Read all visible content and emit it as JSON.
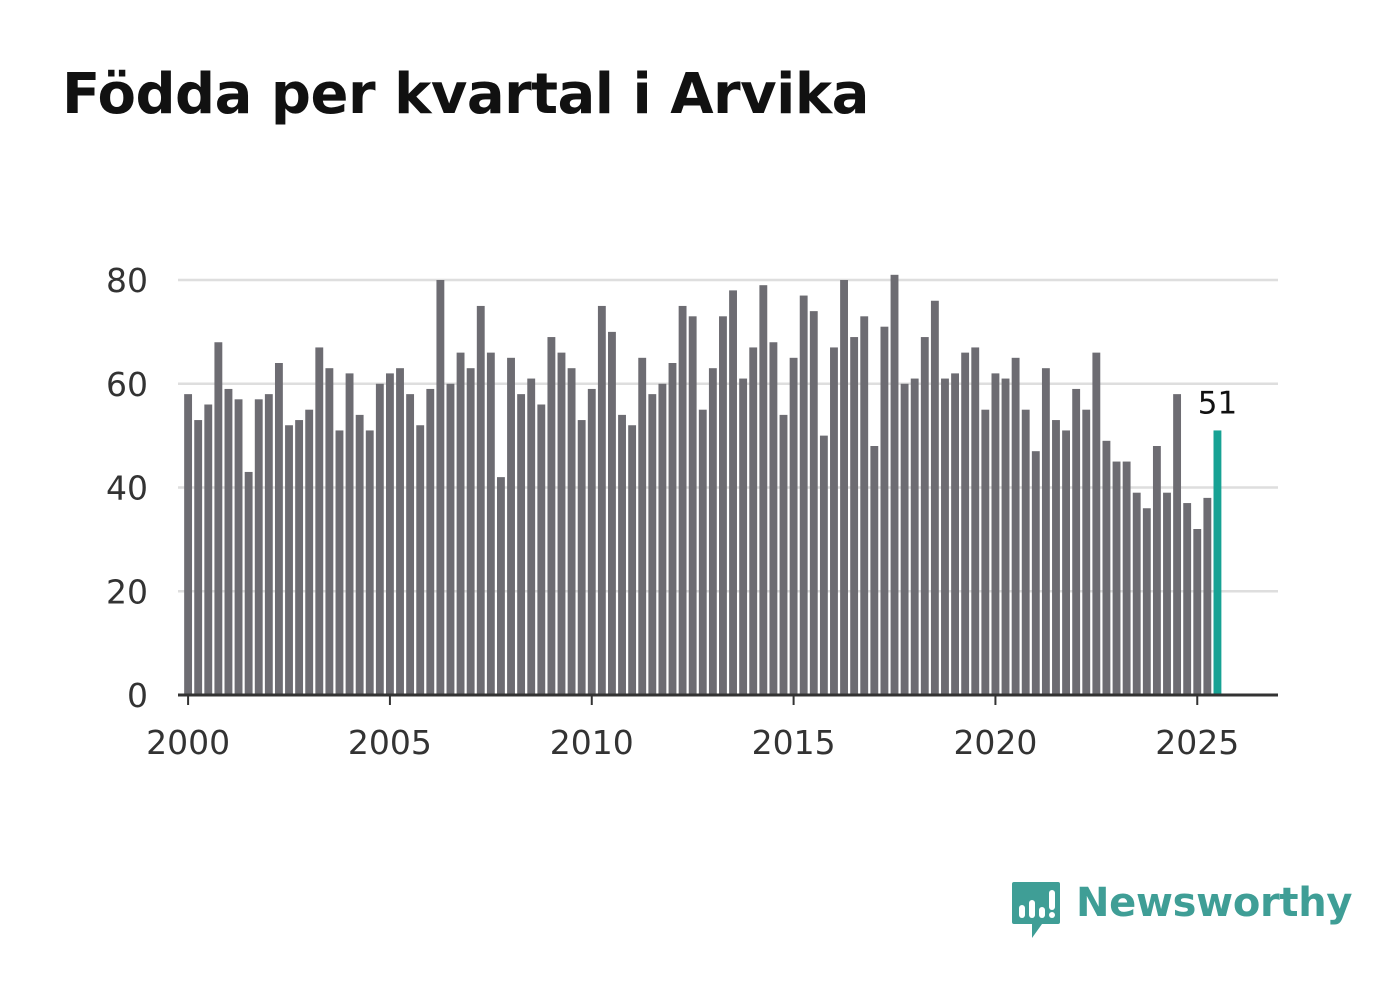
{
  "header": {
    "title": "Födda per kvartal i Arvika"
  },
  "brand": {
    "name": "Newsworthy",
    "color": "#3f9e96"
  },
  "colors": {
    "bar": "#6d6c72",
    "highlight": "#17a294",
    "grid": "#dedede",
    "axis": "#333333",
    "tick_text": "#333333"
  },
  "chart_data": {
    "type": "bar",
    "title": "Födda per kvartal i Arvika",
    "xlabel": "",
    "ylabel": "",
    "ylim": [
      0,
      80
    ],
    "yticks": [
      0,
      20,
      40,
      60,
      80
    ],
    "xticks": [
      2000,
      2005,
      2010,
      2015,
      2020,
      2025
    ],
    "xlim": [
      1999.75,
      2027.0
    ],
    "start_year": 2000,
    "periods_per_year": 4,
    "grid": true,
    "legend": "none",
    "highlight_last": true,
    "last_value_label": "51",
    "values": [
      58,
      53,
      56,
      68,
      59,
      57,
      43,
      57,
      58,
      64,
      52,
      53,
      55,
      67,
      63,
      51,
      62,
      54,
      51,
      60,
      62,
      63,
      58,
      52,
      59,
      80,
      60,
      66,
      63,
      75,
      66,
      42,
      65,
      58,
      61,
      56,
      69,
      66,
      63,
      53,
      59,
      75,
      70,
      54,
      52,
      65,
      58,
      60,
      64,
      75,
      73,
      55,
      63,
      73,
      78,
      61,
      67,
      79,
      68,
      54,
      65,
      77,
      74,
      50,
      67,
      80,
      69,
      73,
      48,
      71,
      81,
      60,
      61,
      69,
      76,
      61,
      62,
      66,
      67,
      55,
      62,
      61,
      65,
      55,
      47,
      63,
      53,
      51,
      59,
      55,
      66,
      49,
      45,
      45,
      39,
      36,
      48,
      39,
      58,
      37,
      32,
      38,
      51
    ]
  }
}
